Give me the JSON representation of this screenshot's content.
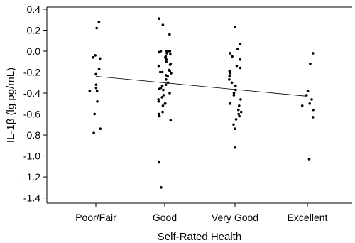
{
  "chart_data": {
    "type": "scatter",
    "xlabel": "Self-Rated Health",
    "ylabel": "IL-1β (lg pg/mL)",
    "categories": [
      "Poor/Fair",
      "Good",
      "Very Good",
      "Excellent"
    ],
    "ylim": [
      -1.45,
      0.42
    ],
    "yticks": [
      0.4,
      0.2,
      0.0,
      -0.2,
      -0.4,
      -0.6,
      -0.8,
      -1.0,
      -1.2,
      -1.4
    ],
    "ytick_labels": [
      "0.4",
      "0.2",
      "0.0",
      "-0.2",
      "-0.4",
      "-0.6",
      "-0.8",
      "-1.0",
      "-1.2",
      "-1.4"
    ],
    "grid": false,
    "legend": "none",
    "groups": [
      {
        "category": "Poor/Fair",
        "values": [
          0.28,
          0.22,
          -0.04,
          -0.06,
          -0.07,
          -0.17,
          -0.22,
          -0.32,
          -0.35,
          -0.38,
          -0.38,
          -0.48,
          -0.6,
          -0.74,
          -0.78
        ]
      },
      {
        "category": "Good",
        "values": [
          0.31,
          0.25,
          0.16,
          0.0,
          0.0,
          0.0,
          0.0,
          -0.01,
          -0.02,
          -0.03,
          -0.05,
          -0.06,
          -0.08,
          -0.1,
          -0.12,
          -0.13,
          -0.14,
          -0.18,
          -0.19,
          -0.2,
          -0.2,
          -0.21,
          -0.23,
          -0.24,
          -0.27,
          -0.3,
          -0.32,
          -0.33,
          -0.35,
          -0.36,
          -0.37,
          -0.4,
          -0.42,
          -0.44,
          -0.46,
          -0.48,
          -0.5,
          -0.5,
          -0.52,
          -0.58,
          -0.6,
          -0.62,
          -0.66,
          -1.06,
          -1.3
        ]
      },
      {
        "category": "Very Good",
        "values": [
          0.23,
          0.07,
          0.02,
          -0.02,
          -0.05,
          -0.08,
          -0.14,
          -0.16,
          -0.19,
          -0.21,
          -0.24,
          -0.27,
          -0.3,
          -0.33,
          -0.37,
          -0.4,
          -0.42,
          -0.46,
          -0.5,
          -0.52,
          -0.56,
          -0.58,
          -0.6,
          -0.62,
          -0.65,
          -0.7,
          -0.74,
          -0.92
        ]
      },
      {
        "category": "Excellent",
        "values": [
          -0.02,
          -0.12,
          -0.38,
          -0.42,
          -0.46,
          -0.5,
          -0.52,
          -0.56,
          -0.63,
          -1.03
        ]
      }
    ],
    "trend_line": {
      "start": {
        "category": "Poor/Fair",
        "y": -0.24
      },
      "end": {
        "category": "Excellent",
        "y": -0.43
      }
    }
  },
  "colors": {
    "point": "#000000",
    "axis": "#000000",
    "trend_line": "#000000",
    "background": "#ffffff"
  }
}
